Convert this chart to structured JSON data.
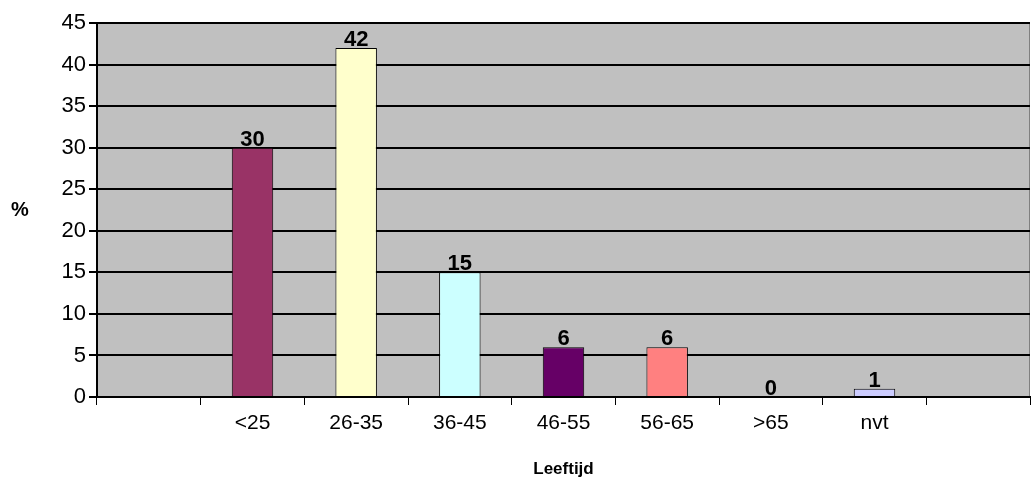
{
  "chart_data": {
    "type": "bar",
    "xlabel": "Leeftijd",
    "ylabel": "%",
    "categories": [
      null,
      "<25",
      "26-35",
      "36-45",
      "46-55",
      "56-65",
      ">65",
      "nvt",
      null
    ],
    "values": [
      null,
      30,
      42,
      15,
      6,
      6,
      0,
      1,
      null
    ],
    "colors": [
      null,
      "#993366",
      "#ffffcc",
      "#ccffff",
      "#660066",
      "#ff8080",
      "#0066cc",
      "#ccccff",
      null
    ],
    "ylim": [
      0,
      45
    ],
    "yticks": [
      0,
      5,
      10,
      15,
      20,
      25,
      30,
      35,
      40,
      45
    ],
    "grid": "y",
    "data_labels": true
  }
}
